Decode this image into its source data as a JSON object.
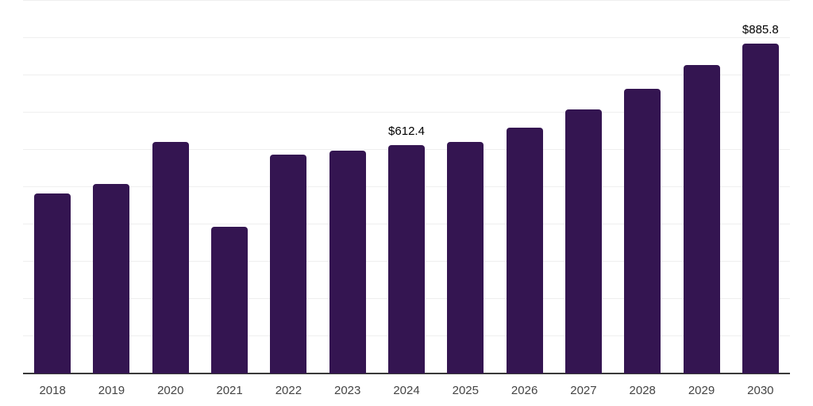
{
  "chart_data": {
    "type": "bar",
    "title": "",
    "xlabel": "",
    "ylabel": "",
    "categories": [
      "2018",
      "2019",
      "2020",
      "2021",
      "2022",
      "2023",
      "2024",
      "2025",
      "2026",
      "2027",
      "2028",
      "2029",
      "2030"
    ],
    "values": [
      483.0,
      507.5,
      622.0,
      393.0,
      588.0,
      598.0,
      612.4,
      622.0,
      660.5,
      709.0,
      763.5,
      827.0,
      885.8
    ],
    "point_labels": [
      "",
      "",
      "",
      "",
      "",
      "",
      "$612.4",
      "",
      "",
      "",
      "",
      "",
      "$885.8"
    ],
    "ylim": [
      0,
      1000
    ],
    "gridline_step": 100,
    "grid": true,
    "y_axis_tick_labels_shown": false,
    "legend": "none",
    "bar_color": "#341551",
    "gridline_color": "#efefef",
    "axis_line_color": "#3a3a3a",
    "x_label_color": "#444444",
    "data_label_color": "#000000"
  }
}
